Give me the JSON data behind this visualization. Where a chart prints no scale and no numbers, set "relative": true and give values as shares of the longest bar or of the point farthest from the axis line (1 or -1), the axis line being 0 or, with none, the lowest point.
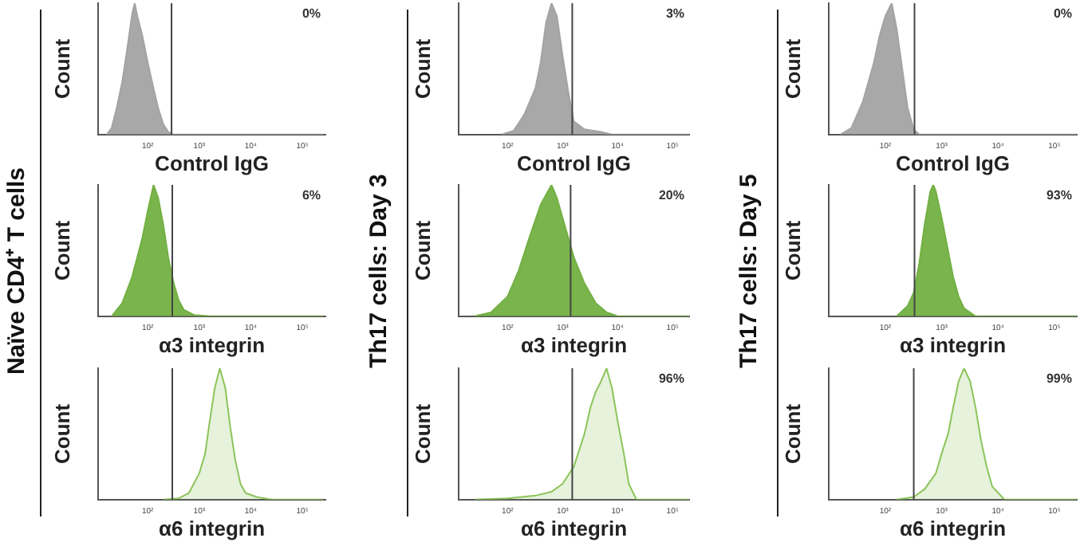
{
  "chart_data": [
    {
      "type": "area",
      "title": "Naïve CD4⁺ T cells",
      "xlabel": "Control IgG",
      "ylabel": "Count",
      "relative": true,
      "log": "x",
      "xlim": [
        11,
        280000
      ],
      "xticks": [
        {
          "value": 100,
          "label": "10²"
        },
        {
          "value": 1000,
          "label": "10³"
        },
        {
          "value": 10000,
          "label": "10⁴"
        },
        {
          "value": 100000,
          "label": "10⁵"
        }
      ],
      "series": [
        {
          "color": "#a3a3a3",
          "x": [
            16,
            20,
            25,
            32,
            40,
            50,
            56,
            63,
            79,
            100,
            130,
            160,
            200,
            250,
            320,
            250000
          ],
          "values": [
            0,
            0.05,
            0.2,
            0.4,
            0.65,
            0.92,
            1,
            0.9,
            0.75,
            0.55,
            0.35,
            0.2,
            0.08,
            0.02,
            0,
            0
          ]
        }
      ],
      "ref_lines": [
        {
          "axis": "x",
          "value": 290
        }
      ],
      "annotations": [
        "0%"
      ]
    },
    {
      "type": "area",
      "xlabel": "α3 integrin",
      "ylabel": "Count",
      "relative": true,
      "log": "x",
      "xlim": [
        11,
        280000
      ],
      "xticks": [
        {
          "value": 100,
          "label": "10²"
        },
        {
          "value": 1000,
          "label": "10³"
        },
        {
          "value": 10000,
          "label": "10⁴"
        },
        {
          "value": 100000,
          "label": "10⁵"
        }
      ],
      "series": [
        {
          "color": "#72b043",
          "x": [
            20,
            32,
            50,
            79,
            100,
            130,
            160,
            200,
            250,
            320,
            400,
            500,
            790,
            1600,
            250000
          ],
          "values": [
            0,
            0.1,
            0.3,
            0.6,
            0.8,
            1,
            0.9,
            0.7,
            0.45,
            0.25,
            0.12,
            0.05,
            0.01,
            0,
            0
          ]
        }
      ],
      "ref_lines": [
        {
          "axis": "x",
          "value": 300
        }
      ],
      "annotations": [
        "6%"
      ]
    },
    {
      "type": "area",
      "xlabel": "α6 integrin",
      "ylabel": "Count",
      "relative": true,
      "log": "x",
      "xlim": [
        11,
        280000
      ],
      "xticks": [
        {
          "value": 100,
          "label": "10²"
        },
        {
          "value": 1000,
          "label": "10³"
        },
        {
          "value": 10000,
          "label": "10⁴"
        },
        {
          "value": 100000,
          "label": "10⁵"
        }
      ],
      "series": [
        {
          "color": "#8cc45a",
          "x": [
            200,
            400,
            630,
            1000,
            1300,
            1600,
            2000,
            2500,
            3200,
            4000,
            5000,
            6300,
            7900,
            13000,
            25000,
            250000
          ],
          "values": [
            0,
            0.01,
            0.05,
            0.2,
            0.35,
            0.6,
            0.85,
            1,
            0.85,
            0.55,
            0.3,
            0.12,
            0.05,
            0.02,
            0,
            0
          ]
        }
      ],
      "ref_lines": [
        {
          "axis": "x",
          "value": 300
        }
      ]
    },
    {
      "type": "area",
      "title": "Th17 cells: Day 3",
      "xlabel": "Control IgG",
      "ylabel": "Count",
      "relative": true,
      "log": "x",
      "xlim": [
        13,
        200000
      ],
      "xticks": [
        {
          "value": 100,
          "label": "10²"
        },
        {
          "value": 1000,
          "label": "10³"
        },
        {
          "value": 10000,
          "label": "10⁴"
        },
        {
          "value": 100000,
          "label": "10⁵"
        }
      ],
      "series": [
        {
          "color": "#a3a3a3",
          "x": [
            79,
            130,
            200,
            320,
            400,
            500,
            630,
            790,
            1000,
            1300,
            1600,
            2500,
            5000,
            7900,
            200000
          ],
          "values": [
            0,
            0.03,
            0.15,
            0.35,
            0.55,
            0.85,
            1,
            0.9,
            0.6,
            0.3,
            0.1,
            0.04,
            0.02,
            0,
            0
          ]
        }
      ],
      "ref_lines": [
        {
          "axis": "x",
          "value": 1500
        }
      ],
      "annotations": [
        "3%"
      ]
    },
    {
      "type": "area",
      "xlabel": "α3 integrin",
      "ylabel": "Count",
      "relative": true,
      "log": "x",
      "xlim": [
        13,
        200000
      ],
      "xticks": [
        {
          "value": 100,
          "label": "10²"
        },
        {
          "value": 1000,
          "label": "10³"
        },
        {
          "value": 10000,
          "label": "10⁴"
        },
        {
          "value": 100000,
          "label": "10⁵"
        }
      ],
      "series": [
        {
          "color": "#72b043",
          "x": [
            25,
            50,
            100,
            160,
            250,
            400,
            630,
            790,
            1000,
            1600,
            2500,
            4000,
            6300,
            10000,
            200000
          ],
          "values": [
            0,
            0.03,
            0.15,
            0.35,
            0.6,
            0.85,
            1,
            0.9,
            0.75,
            0.45,
            0.25,
            0.1,
            0.03,
            0,
            0
          ]
        }
      ],
      "ref_lines": [
        {
          "axis": "x",
          "value": 1400
        }
      ],
      "annotations": [
        "20%"
      ]
    },
    {
      "type": "area",
      "xlabel": "α6 integrin",
      "ylabel": "Count",
      "relative": true,
      "log": "x",
      "xlim": [
        13,
        200000
      ],
      "xticks": [
        {
          "value": 100,
          "label": "10²"
        },
        {
          "value": 1000,
          "label": "10³"
        },
        {
          "value": 10000,
          "label": "10⁴"
        },
        {
          "value": 100000,
          "label": "10⁵"
        }
      ],
      "series": [
        {
          "color": "#8cc45a",
          "x": [
            25,
            100,
            320,
            630,
            1000,
            1600,
            2500,
            3200,
            4000,
            5000,
            6300,
            7900,
            10000,
            13000,
            16000,
            22000,
            200000
          ],
          "values": [
            0,
            0.01,
            0.03,
            0.06,
            0.12,
            0.25,
            0.5,
            0.7,
            0.82,
            0.9,
            1,
            0.85,
            0.6,
            0.35,
            0.12,
            0,
            0
          ]
        }
      ],
      "ref_lines": [
        {
          "axis": "x",
          "value": 1500
        }
      ],
      "annotations": [
        "96%"
      ]
    },
    {
      "type": "area",
      "title": "Th17 cells: Day 5",
      "xlabel": "Control IgG",
      "ylabel": "Count",
      "relative": true,
      "log": "x",
      "xlim": [
        10,
        250000
      ],
      "xticks": [
        {
          "value": 100,
          "label": "10²"
        },
        {
          "value": 1000,
          "label": "10³"
        },
        {
          "value": 10000,
          "label": "10⁴"
        },
        {
          "value": 100000,
          "label": "10⁵"
        }
      ],
      "series": [
        {
          "color": "#a3a3a3",
          "x": [
            16,
            25,
            40,
            63,
            79,
            100,
            130,
            160,
            200,
            250,
            320,
            400,
            250000
          ],
          "values": [
            0,
            0.05,
            0.25,
            0.55,
            0.75,
            0.9,
            1,
            0.8,
            0.5,
            0.2,
            0.04,
            0,
            0
          ]
        }
      ],
      "ref_lines": [
        {
          "axis": "x",
          "value": 330
        }
      ],
      "annotations": [
        "0%"
      ]
    },
    {
      "type": "area",
      "xlabel": "α3 integrin",
      "ylabel": "Count",
      "relative": true,
      "log": "x",
      "xlim": [
        10,
        250000
      ],
      "xticks": [
        {
          "value": 100,
          "label": "10²"
        },
        {
          "value": 1000,
          "label": "10³"
        },
        {
          "value": 10000,
          "label": "10⁴"
        },
        {
          "value": 100000,
          "label": "10⁵"
        }
      ],
      "series": [
        {
          "color": "#72b043",
          "x": [
            160,
            250,
            320,
            400,
            500,
            630,
            710,
            790,
            1000,
            1300,
            1600,
            2000,
            2500,
            4000,
            250000
          ],
          "values": [
            0,
            0.08,
            0.18,
            0.4,
            0.7,
            0.95,
            1,
            0.95,
            0.75,
            0.5,
            0.3,
            0.15,
            0.06,
            0,
            0
          ]
        }
      ],
      "ref_lines": [
        {
          "axis": "x",
          "value": 330
        }
      ],
      "annotations": [
        "93%"
      ]
    },
    {
      "type": "area",
      "xlabel": "α6 integrin",
      "ylabel": "Count",
      "relative": true,
      "log": "x",
      "xlim": [
        10,
        250000
      ],
      "xticks": [
        {
          "value": 100,
          "label": "10²"
        },
        {
          "value": 1000,
          "label": "10³"
        },
        {
          "value": 10000,
          "label": "10⁴"
        },
        {
          "value": 100000,
          "label": "10⁵"
        }
      ],
      "series": [
        {
          "color": "#8cc45a",
          "x": [
            160,
            320,
            500,
            790,
            1000,
            1300,
            1600,
            2000,
            2500,
            3200,
            4000,
            5000,
            6300,
            7900,
            13000,
            250000
          ],
          "values": [
            0,
            0.02,
            0.08,
            0.2,
            0.35,
            0.5,
            0.7,
            0.9,
            1,
            0.9,
            0.7,
            0.45,
            0.25,
            0.1,
            0,
            0
          ]
        }
      ],
      "ref_lines": [
        {
          "axis": "x",
          "value": 320
        }
      ],
      "annotations": [
        "99%"
      ]
    }
  ]
}
